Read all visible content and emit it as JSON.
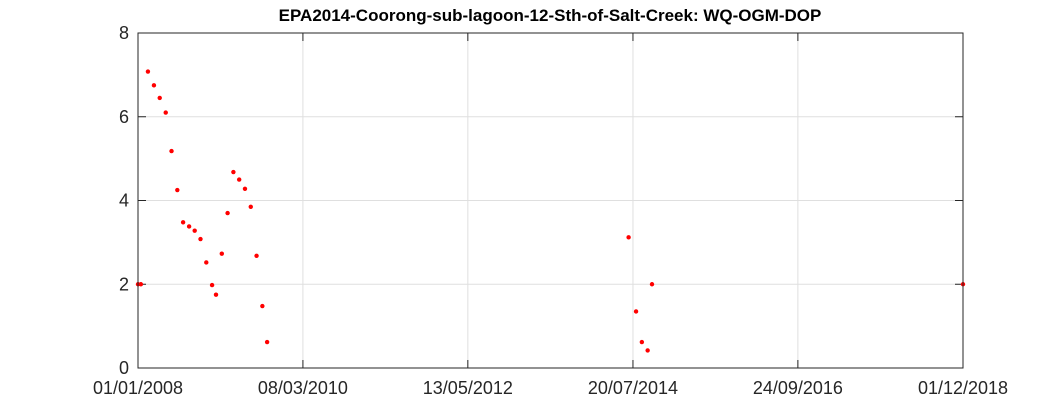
{
  "chart_data": {
    "type": "scatter",
    "title": "EPA2014-Coorong-sub-lagoon-12-Sth-of-Salt-Creek: WQ-OGM-DOP",
    "xlabel": "",
    "ylabel": "",
    "x_type": "date",
    "xlim": [
      "01/01/2008",
      "01/12/2018"
    ],
    "ylim": [
      0,
      8
    ],
    "xticks": [
      "01/01/2008",
      "08/03/2010",
      "13/05/2012",
      "20/07/2014",
      "24/09/2016",
      "01/12/2018"
    ],
    "yticks": [
      "0",
      "2",
      "4",
      "6",
      "8"
    ],
    "grid": true,
    "marker_color": "#ff0000",
    "series": [
      {
        "points": [
          [
            "01/01/2008",
            2.0
          ],
          [
            "15/01/2008",
            2.0
          ],
          [
            "18/02/2008",
            7.08
          ],
          [
            "18/03/2008",
            6.75
          ],
          [
            "15/04/2008",
            6.45
          ],
          [
            "14/05/2008",
            6.1
          ],
          [
            "11/06/2008",
            5.18
          ],
          [
            "09/07/2008",
            4.25
          ],
          [
            "06/08/2008",
            3.48
          ],
          [
            "04/09/2008",
            3.38
          ],
          [
            "01/10/2008",
            3.28
          ],
          [
            "29/10/2008",
            3.08
          ],
          [
            "26/11/2008",
            2.52
          ],
          [
            "24/12/2008",
            1.98
          ],
          [
            "12/01/2009",
            1.75
          ],
          [
            "09/02/2009",
            2.73
          ],
          [
            "09/03/2009",
            3.7
          ],
          [
            "06/04/2009",
            4.68
          ],
          [
            "04/05/2009",
            4.5
          ],
          [
            "01/06/2009",
            4.28
          ],
          [
            "29/06/2009",
            3.85
          ],
          [
            "27/07/2009",
            2.68
          ],
          [
            "24/08/2009",
            1.48
          ],
          [
            "16/09/2009",
            0.62
          ],
          [
            "29/06/2014",
            3.12
          ],
          [
            "04/08/2014",
            1.35
          ],
          [
            "01/09/2014",
            0.62
          ],
          [
            "29/09/2014",
            0.42
          ],
          [
            "20/10/2014",
            2.0
          ],
          [
            "01/12/2018",
            2.0
          ]
        ]
      }
    ]
  }
}
